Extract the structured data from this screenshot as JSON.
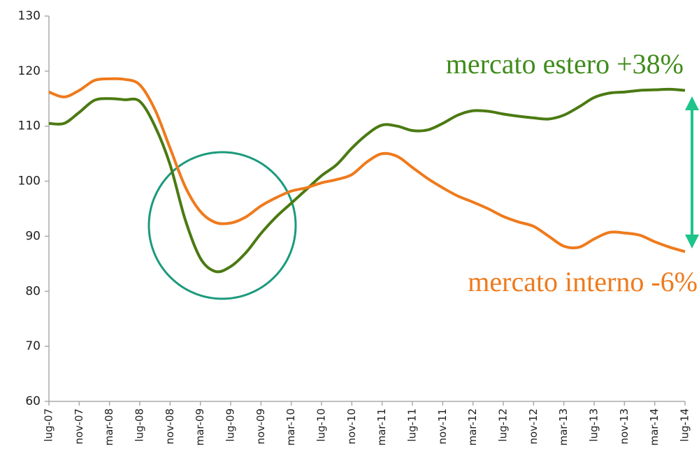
{
  "chart_data": {
    "type": "line",
    "categories": [
      "lug-07",
      null,
      "nov-07",
      null,
      "mar-08",
      null,
      "lug-08",
      null,
      "nov-08",
      null,
      "mar-09",
      null,
      "lug-09",
      null,
      "nov-09",
      null,
      "mar-10",
      null,
      "lug-10",
      null,
      "nov-10",
      null,
      "mar-11",
      null,
      "lug-11",
      null,
      "nov-11",
      null,
      "mar-12",
      null,
      "lug-12",
      null,
      "nov-12",
      null,
      "mar-13",
      null,
      "lug-13",
      null,
      "nov-13",
      null,
      "mar-14",
      null,
      "lug-14"
    ],
    "series": [
      {
        "name": "mercato estero",
        "color": "#4b7a12",
        "values": [
          110.5,
          110.5,
          112.5,
          114.7,
          115,
          114.8,
          114.5,
          110,
          103,
          93,
          86,
          83.6,
          84.5,
          87,
          90.5,
          93.5,
          96,
          98.5,
          101,
          103,
          106,
          108.5,
          110.2,
          110,
          109.2,
          109.3,
          110.5,
          112,
          112.8,
          112.7,
          112.2,
          111.8,
          111.5,
          111.3,
          112,
          113.5,
          115.2,
          116,
          116.2,
          116.5,
          116.6,
          116.7,
          116.5
        ]
      },
      {
        "name": "mercato interno",
        "color": "#ef7a1c",
        "values": [
          116.2,
          115.3,
          116.5,
          118.3,
          118.6,
          118.5,
          117.5,
          113,
          106,
          99,
          94.5,
          92.5,
          92.4,
          93.5,
          95.5,
          97,
          98.2,
          98.8,
          99.7,
          100.3,
          101.2,
          103.5,
          105,
          104.5,
          102.5,
          100.5,
          98.8,
          97.3,
          96.2,
          95,
          93.6,
          92.6,
          91.8,
          90,
          88.2,
          88,
          89.5,
          90.7,
          90.6,
          90.2,
          89,
          88,
          87.2
        ]
      }
    ],
    "annotations": [
      {
        "text": "mercato estero +38%",
        "color": "#3f8c1c"
      },
      {
        "text": "mercato interno -6%",
        "color": "#ef7a1c"
      }
    ],
    "ylim": [
      60,
      130
    ],
    "yticks": [
      60,
      70,
      80,
      90,
      100,
      110,
      120,
      130
    ],
    "grid": false
  }
}
